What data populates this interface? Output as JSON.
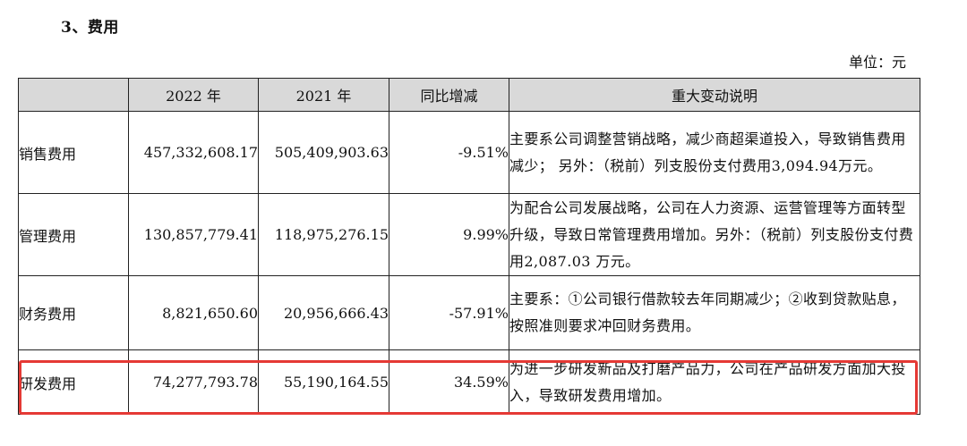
{
  "section_title": "3、费用",
  "unit_label": "单位：元",
  "table": {
    "headers": [
      "",
      "2022 年",
      "2021 年",
      "同比增减",
      "重大变动说明"
    ],
    "rows": [
      {
        "name": "销售费用",
        "y2022": "457,332,608.17",
        "y2021": "505,409,903.63",
        "change": "-9.51%",
        "note": "主要系公司调整营销战略，减少商超渠道投入，导致销售费用减少； 另外：（税前）列支股份支付费用3,094.94万元。"
      },
      {
        "name": "管理费用",
        "y2022": "130,857,779.41",
        "y2021": "118,975,276.15",
        "change": "9.99%",
        "note": "为配合公司发展战略，公司在人力资源、运营管理等方面转型升级，导致日常管理费用增加。另外：（税前）列支股份支付费用2,087.03 万元。"
      },
      {
        "name": "财务费用",
        "y2022": "8,821,650.60",
        "y2021": "20,956,666.43",
        "change": "-57.91%",
        "note": "主要系：①公司银行借款较去年同期减少；②收到贷款贴息，按照准则要求冲回财务费用。"
      },
      {
        "name": "研发费用",
        "y2022": "74,277,793.78",
        "y2021": "55,190,164.55",
        "change": "34.59%",
        "note": "为进一步研发新品及打磨产品力，公司在产品研发方面加大投入，导致研发费用增加。"
      }
    ]
  },
  "highlight_color": "#e53935",
  "header_background": "#d9d9d9"
}
